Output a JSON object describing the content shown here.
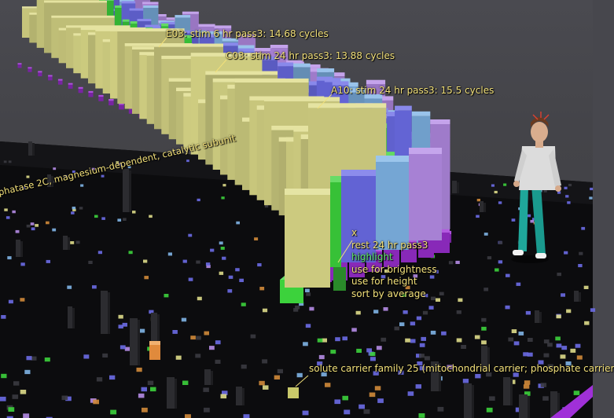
{
  "annotations": [
    {
      "text": "E03: stim 6 hr pass3: 14.68 cycles"
    },
    {
      "text": "C03: stim 24 hr pass3: 13.88 cycles"
    },
    {
      "text": "A10: stim 24 hr pass3: 15.5 cycles"
    }
  ],
  "gene_labels": {
    "left": "phatase 2C, magnesium-dependent, catalytic subunit",
    "bottom": "solute carrier family 25 (mitochondrial carrier; phosphate carrier"
  },
  "context_menu": {
    "items": [
      {
        "label": "x"
      },
      {
        "label": "rest 24 hr pass3"
      },
      {
        "label": "highlight"
      },
      {
        "label": "use for brightness"
      },
      {
        "label": "use for height"
      },
      {
        "label": "sort by average"
      }
    ]
  },
  "colors": {
    "yellow": "#dedc8a",
    "green": "#3cd23c",
    "blue": "#6b6ce6",
    "lightblue": "#7fb4e6",
    "violet": "#b58ce6",
    "magenta": "#a030d8",
    "floor": "#0c0c0e",
    "label": "#f2e07a",
    "highlight": "#5fe86a"
  },
  "avatar": {
    "icon": "standing-person-avatar"
  }
}
